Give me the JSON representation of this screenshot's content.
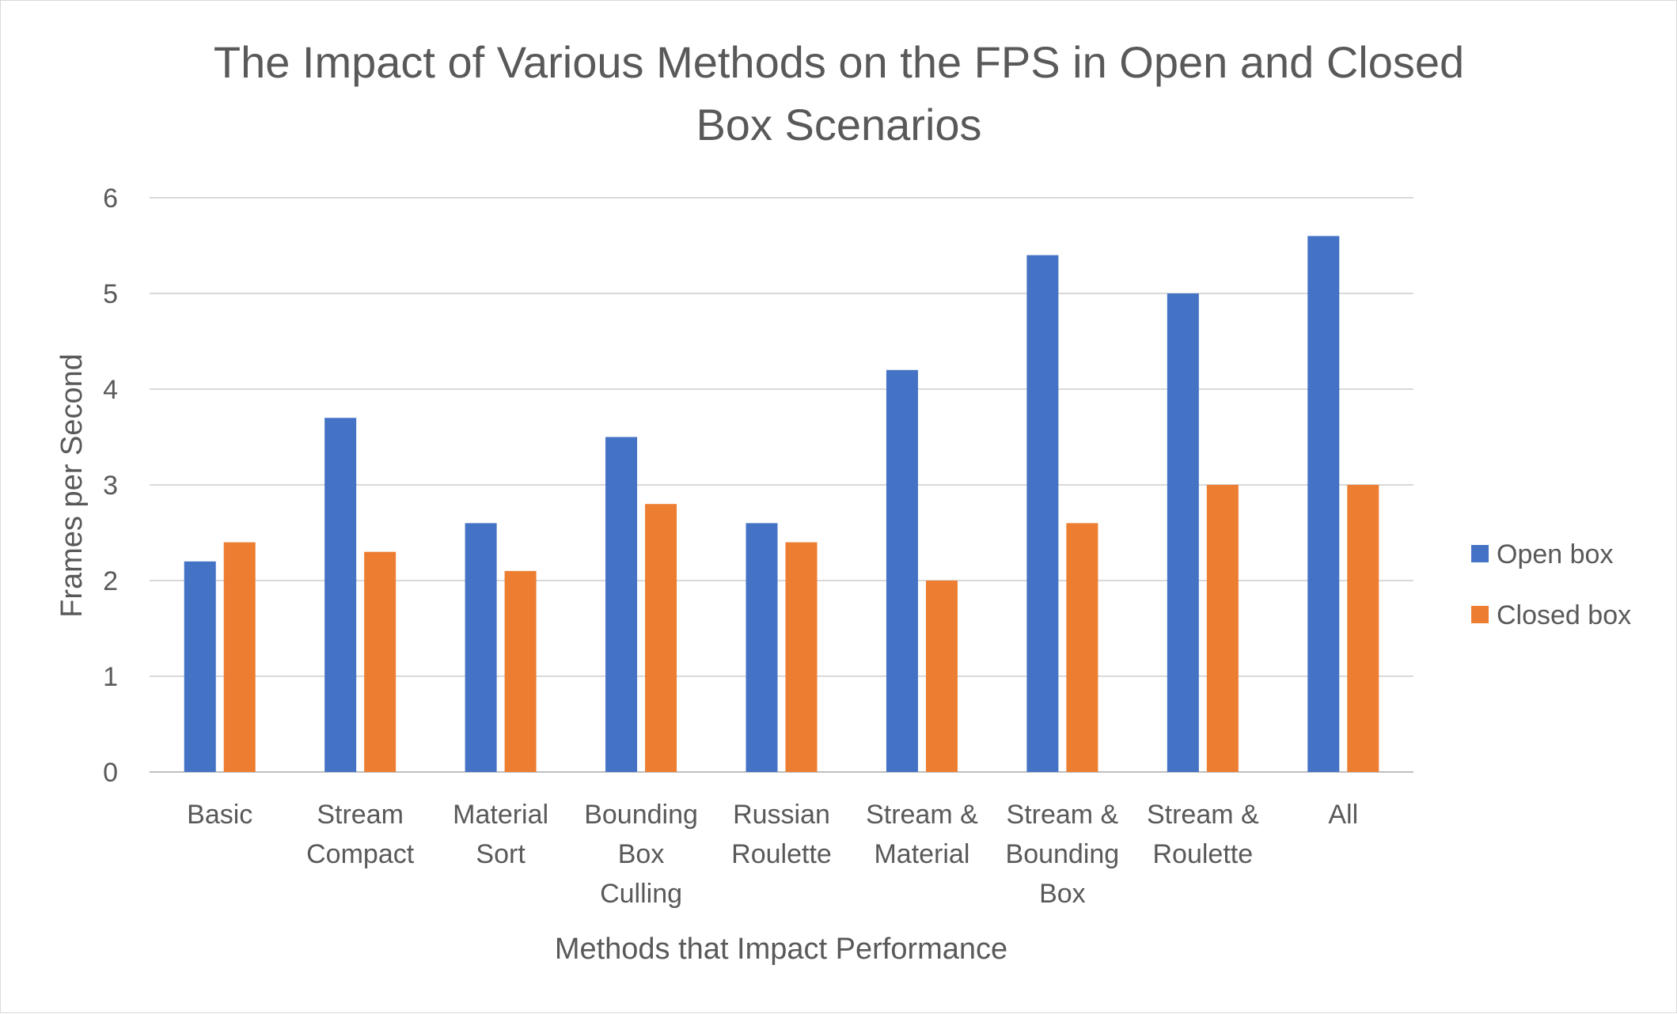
{
  "chart_data": {
    "type": "bar",
    "title": "The Impact of Various Methods on the FPS in Open and Closed Box Scenarios",
    "title_lines": [
      "The Impact of Various Methods on the FPS in Open and Closed",
      "Box Scenarios"
    ],
    "xlabel": "Methods that Impact Performance",
    "ylabel": "Frames per Second",
    "ylim": [
      0,
      6
    ],
    "yticks": [
      0,
      1,
      2,
      3,
      4,
      5,
      6
    ],
    "grid": true,
    "legend_position": "right",
    "categories": [
      [
        "Basic"
      ],
      [
        "Stream",
        "Compact"
      ],
      [
        "Material",
        "Sort"
      ],
      [
        "Bounding",
        "Box",
        "Culling"
      ],
      [
        "Russian",
        "Roulette"
      ],
      [
        "Stream &",
        "Material"
      ],
      [
        "Stream &",
        "Bounding",
        "Box"
      ],
      [
        "Stream &",
        "Roulette"
      ],
      [
        "All"
      ]
    ],
    "series": [
      {
        "name": "Open box",
        "color": "#4472c4",
        "values": [
          2.2,
          3.7,
          2.6,
          3.5,
          2.6,
          4.2,
          5.4,
          5.0,
          5.6
        ]
      },
      {
        "name": "Closed box",
        "color": "#ed7d31",
        "values": [
          2.4,
          2.3,
          2.1,
          2.8,
          2.4,
          2.0,
          2.6,
          3.0,
          3.0
        ]
      }
    ]
  }
}
